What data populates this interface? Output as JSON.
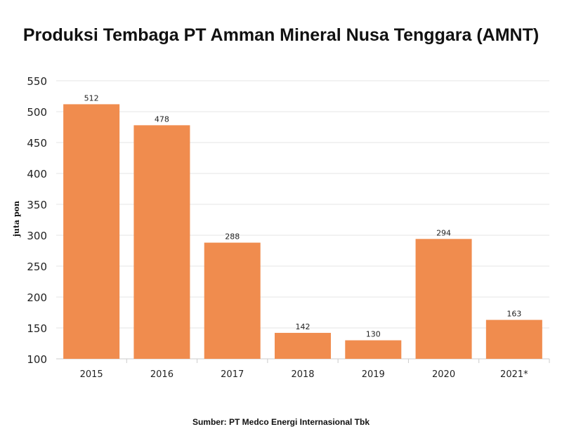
{
  "chart_data": {
    "type": "bar",
    "title": "Produksi Tembaga PT Amman Mineral Nusa Tenggara (AMNT)",
    "xlabel": "",
    "ylabel": "juta pon",
    "categories": [
      "2015",
      "2016",
      "2017",
      "2018",
      "2019",
      "2020",
      "2021*"
    ],
    "values": [
      512,
      478,
      288,
      142,
      130,
      294,
      163
    ],
    "ylim": [
      100,
      550
    ],
    "yticks": [
      100,
      150,
      200,
      250,
      300,
      350,
      400,
      450,
      500,
      550
    ],
    "grid": true,
    "bar_color": "#F08C4E",
    "source": "Sumber: PT Medco Energi Internasional Tbk"
  }
}
